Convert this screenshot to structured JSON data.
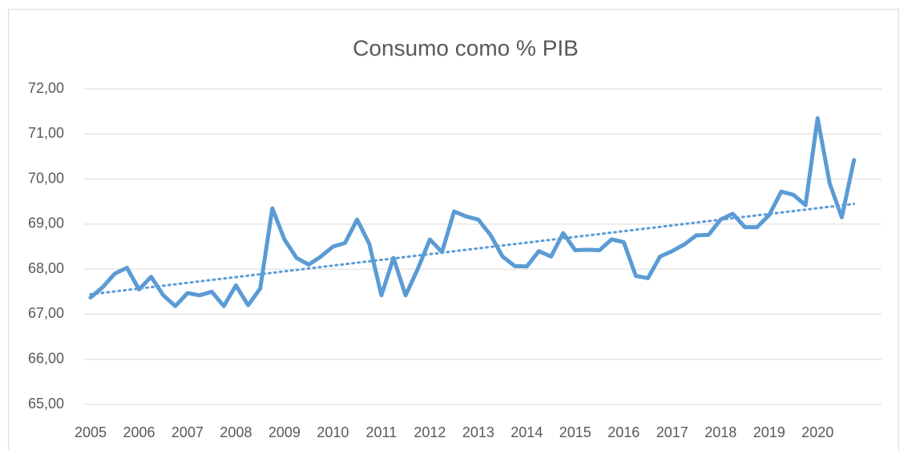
{
  "chart_data": {
    "type": "line",
    "title": "Consumo como % PIB",
    "categories": [
      "2005",
      null,
      null,
      null,
      "2006",
      null,
      null,
      null,
      "2007",
      null,
      null,
      null,
      "2008",
      null,
      null,
      null,
      "2009",
      null,
      null,
      null,
      "2010",
      null,
      null,
      null,
      "2011",
      null,
      null,
      null,
      "2012",
      null,
      null,
      null,
      "2013",
      null,
      null,
      null,
      "2014",
      null,
      null,
      null,
      "2015",
      null,
      null,
      null,
      "2016",
      null,
      null,
      null,
      "2017",
      null,
      null,
      null,
      "2018",
      null,
      null,
      null,
      "2019",
      null,
      null,
      null,
      "2020",
      null,
      null,
      null
    ],
    "series": [
      {
        "color": "#5b9bd5",
        "values": [
          67.37,
          67.6,
          67.9,
          68.03,
          67.55,
          67.83,
          67.42,
          67.18,
          67.47,
          67.42,
          67.5,
          67.18,
          67.64,
          67.2,
          67.57,
          69.35,
          68.66,
          68.25,
          68.1,
          68.28,
          68.5,
          68.58,
          69.1,
          68.56,
          67.42,
          68.25,
          67.42,
          68.0,
          68.66,
          68.38,
          69.28,
          69.17,
          69.1,
          68.76,
          68.28,
          68.07,
          68.06,
          68.4,
          68.28,
          68.8,
          68.42,
          68.43,
          68.42,
          68.66,
          68.6,
          67.85,
          67.8,
          68.28,
          68.4,
          68.55,
          68.75,
          68.76,
          69.1,
          69.23,
          68.93,
          68.93,
          69.2,
          69.72,
          69.65,
          69.42,
          71.35,
          69.9,
          69.15,
          70.42
        ]
      }
    ],
    "trendline": "linear",
    "ylim": [
      65,
      72
    ],
    "yticks": [
      {
        "value": 65,
        "label": "65,00"
      },
      {
        "value": 66,
        "label": "66,00"
      },
      {
        "value": 67,
        "label": "67,00"
      },
      {
        "value": 68,
        "label": "68,00"
      },
      {
        "value": 69,
        "label": "69,00"
      },
      {
        "value": 70,
        "label": "70,00"
      },
      {
        "value": 71,
        "label": "71,00"
      },
      {
        "value": 72,
        "label": "72,00"
      }
    ],
    "grid": true
  }
}
